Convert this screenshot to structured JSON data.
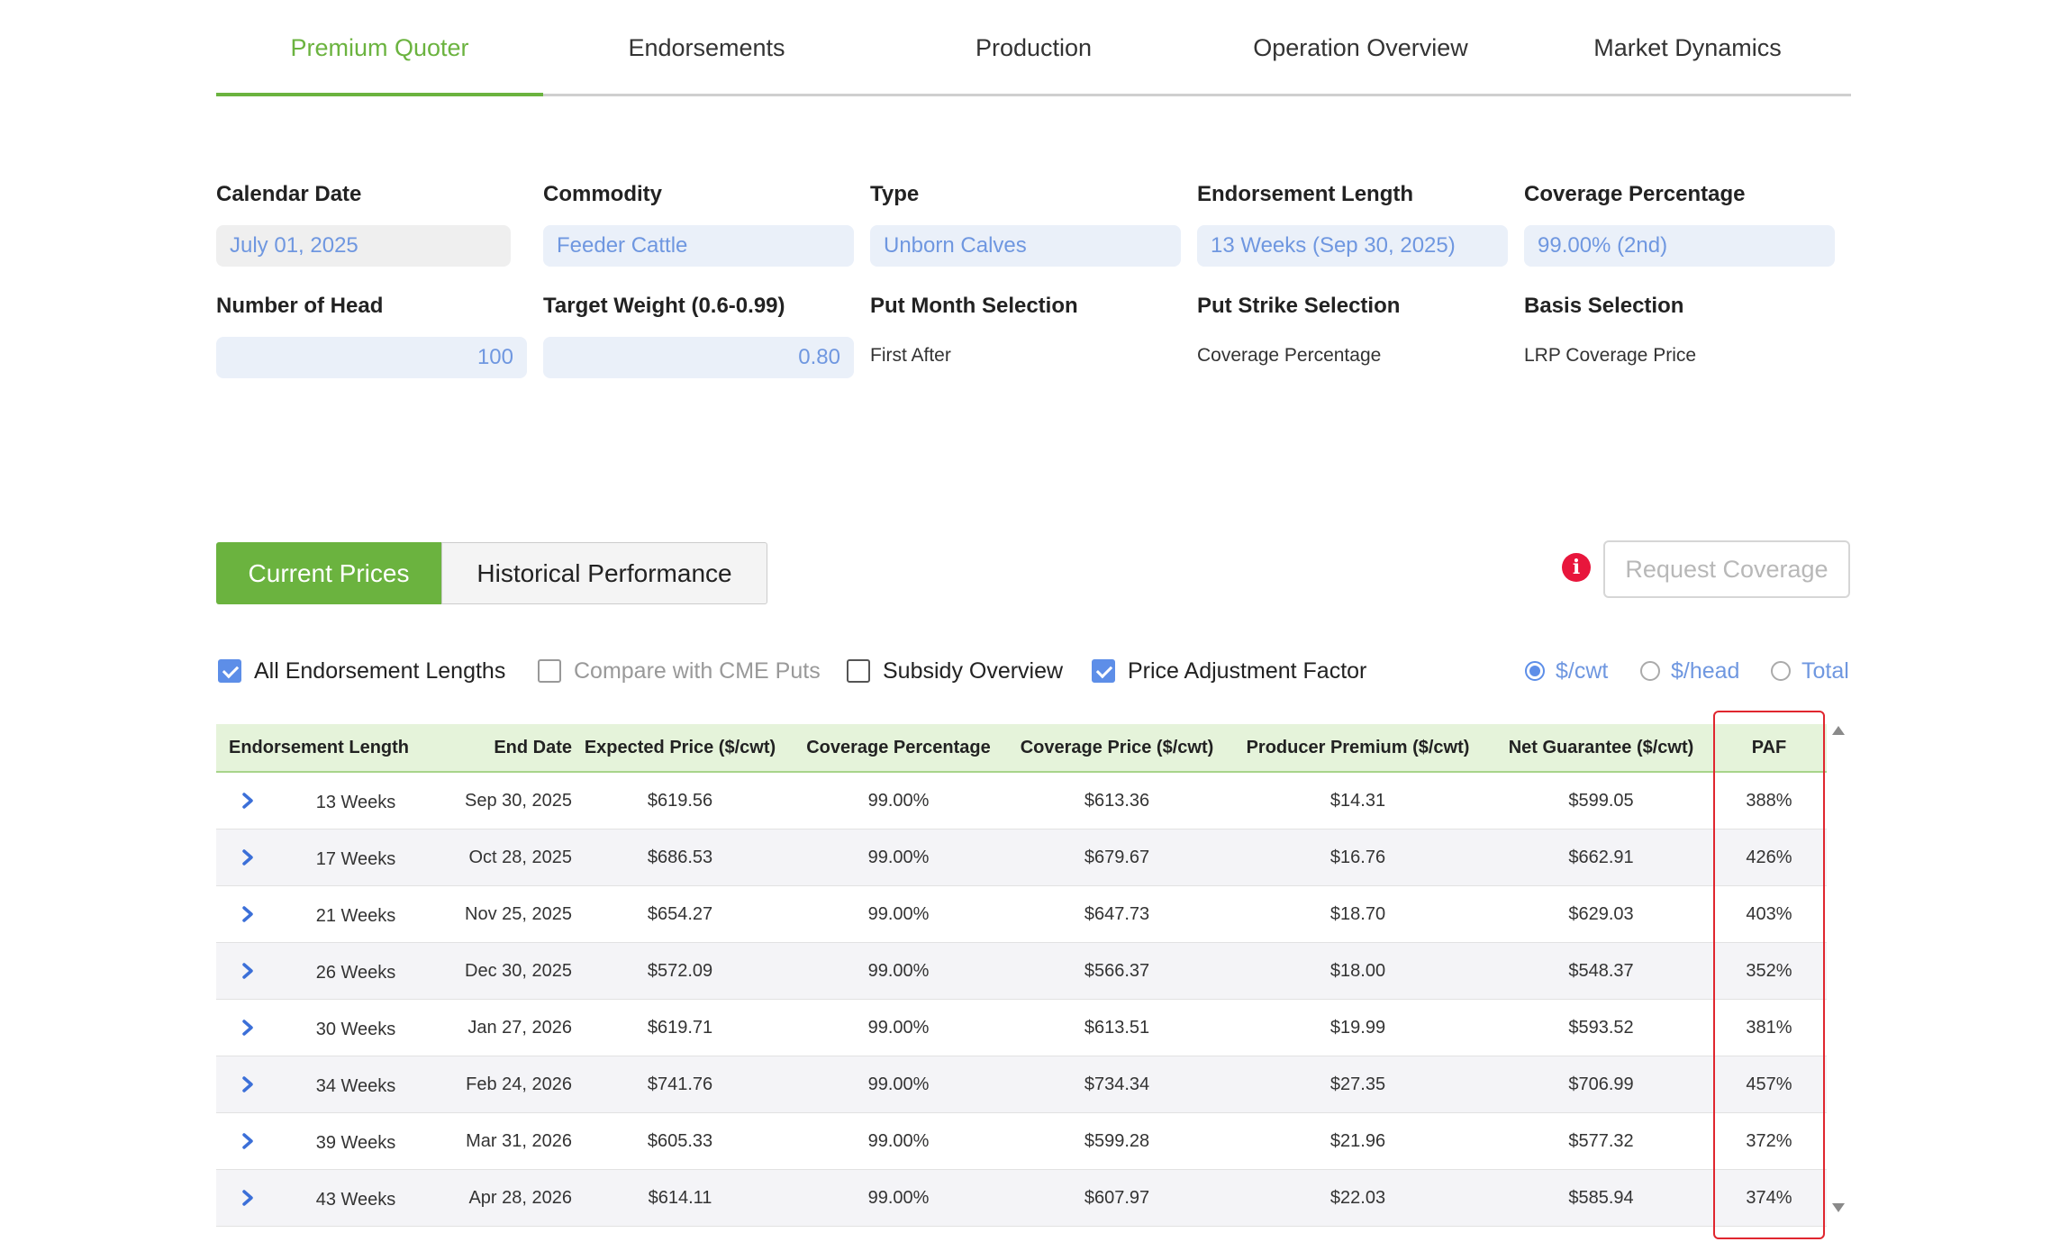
{
  "tabs": [
    "Premium Quoter",
    "Endorsements",
    "Production",
    "Operation Overview",
    "Market Dynamics"
  ],
  "form": {
    "calendar_date": {
      "label": "Calendar Date",
      "value": "July 01, 2025"
    },
    "commodity": {
      "label": "Commodity",
      "value": "Feeder Cattle"
    },
    "type": {
      "label": "Type",
      "value": "Unborn Calves"
    },
    "endorsement_length": {
      "label": "Endorsement Length",
      "value": "13 Weeks (Sep 30, 2025)"
    },
    "coverage_percentage": {
      "label": "Coverage Percentage",
      "value": "99.00% (2nd)"
    },
    "number_of_head": {
      "label": "Number of Head",
      "value": "100"
    },
    "target_weight": {
      "label": "Target Weight (0.6-0.99)",
      "value": "0.80"
    },
    "put_month": {
      "label": "Put Month Selection",
      "value": "First After"
    },
    "put_strike": {
      "label": "Put Strike Selection",
      "value": "Coverage Percentage"
    },
    "basis": {
      "label": "Basis Selection",
      "value": "LRP Coverage Price"
    }
  },
  "view_toggle": {
    "current": "Current Prices",
    "historical": "Historical Performance"
  },
  "info_icon": "i",
  "request_coverage": "Request Coverage",
  "options": {
    "all_lengths": "All Endorsement Lengths",
    "compare_cme": "Compare with CME Puts",
    "subsidy": "Subsidy Overview",
    "paf": "Price Adjustment Factor"
  },
  "units": {
    "cwt": "$/cwt",
    "head": "$/head",
    "total": "Total"
  },
  "table": {
    "headers": [
      "Endorsement Length",
      "End Date",
      "Expected Price ($/cwt)",
      "Coverage Percentage",
      "Coverage Price ($/cwt)",
      "Producer Premium ($/cwt)",
      "Net Guarantee ($/cwt)",
      "PAF"
    ],
    "rows": [
      {
        "length": "13 Weeks",
        "end_date": "Sep 30, 2025",
        "expected": "$619.56",
        "coverage_pct": "99.00%",
        "coverage_price": "$613.36",
        "premium": "$14.31",
        "net": "$599.05",
        "paf": "388%"
      },
      {
        "length": "17 Weeks",
        "end_date": "Oct 28, 2025",
        "expected": "$686.53",
        "coverage_pct": "99.00%",
        "coverage_price": "$679.67",
        "premium": "$16.76",
        "net": "$662.91",
        "paf": "426%"
      },
      {
        "length": "21 Weeks",
        "end_date": "Nov 25, 2025",
        "expected": "$654.27",
        "coverage_pct": "99.00%",
        "coverage_price": "$647.73",
        "premium": "$18.70",
        "net": "$629.03",
        "paf": "403%"
      },
      {
        "length": "26 Weeks",
        "end_date": "Dec 30, 2025",
        "expected": "$572.09",
        "coverage_pct": "99.00%",
        "coverage_price": "$566.37",
        "premium": "$18.00",
        "net": "$548.37",
        "paf": "352%"
      },
      {
        "length": "30 Weeks",
        "end_date": "Jan 27, 2026",
        "expected": "$619.71",
        "coverage_pct": "99.00%",
        "coverage_price": "$613.51",
        "premium": "$19.99",
        "net": "$593.52",
        "paf": "381%"
      },
      {
        "length": "34 Weeks",
        "end_date": "Feb 24, 2026",
        "expected": "$741.76",
        "coverage_pct": "99.00%",
        "coverage_price": "$734.34",
        "premium": "$27.35",
        "net": "$706.99",
        "paf": "457%"
      },
      {
        "length": "39 Weeks",
        "end_date": "Mar 31, 2026",
        "expected": "$605.33",
        "coverage_pct": "99.00%",
        "coverage_price": "$599.28",
        "premium": "$21.96",
        "net": "$577.32",
        "paf": "372%"
      },
      {
        "length": "43 Weeks",
        "end_date": "Apr 28, 2026",
        "expected": "$614.11",
        "coverage_pct": "99.00%",
        "coverage_price": "$607.97",
        "premium": "$22.03",
        "net": "$585.94",
        "paf": "374%"
      }
    ]
  },
  "colors": {
    "accent_green": "#6bb33f",
    "link_blue": "#6f97e0",
    "highlight_red": "#e0262f",
    "alert_red": "#e8163c"
  }
}
